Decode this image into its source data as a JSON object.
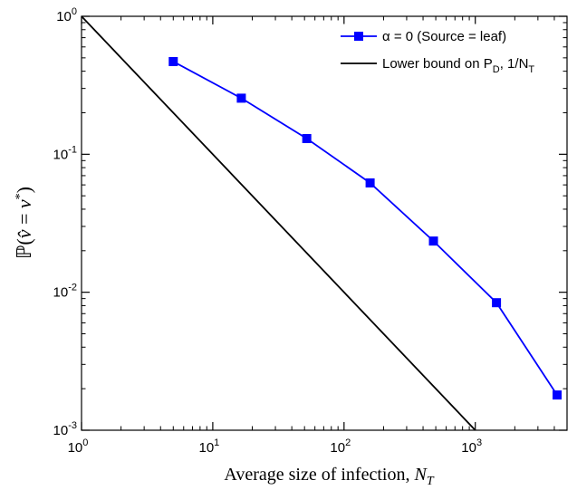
{
  "chart_data": {
    "type": "line",
    "x_scale": "log",
    "y_scale": "log",
    "xlim": [
      1,
      5000
    ],
    "ylim": [
      0.001,
      1
    ],
    "xlabel": {
      "text": "Average size of infection, ",
      "var": "N",
      "sub": "T"
    },
    "ylabel": {
      "text": "ℙ(",
      "var1": "v̂",
      "eq": " = ",
      "var2": "v",
      "sup": "*",
      "close": ")"
    },
    "grid": false,
    "legend_position": "top-right",
    "x_ticks": [
      {
        "value": 1,
        "base": "10",
        "exp": "0"
      },
      {
        "value": 10,
        "base": "10",
        "exp": "1"
      },
      {
        "value": 100,
        "base": "10",
        "exp": "2"
      },
      {
        "value": 1000,
        "base": "10",
        "exp": "3"
      }
    ],
    "y_ticks": [
      {
        "value": 0.001,
        "base": "10",
        "exp": "-3"
      },
      {
        "value": 0.01,
        "base": "10",
        "exp": "-2"
      },
      {
        "value": 0.1,
        "base": "10",
        "exp": "-1"
      },
      {
        "value": 1,
        "base": "10",
        "exp": "0"
      }
    ],
    "series": [
      {
        "label": "α = 0 (Source = leaf)",
        "legend_label": {
          "text": "α = 0 (Source = leaf)"
        },
        "color": "#0000ff",
        "marker": "square",
        "x": [
          5,
          16.5,
          52,
          158,
          480,
          1450,
          4200
        ],
        "y": [
          0.47,
          0.255,
          0.13,
          0.062,
          0.0235,
          0.0084,
          0.0018
        ]
      },
      {
        "label": "Lower bound on P_D, 1/N_T",
        "legend_label": {
          "text": "Lower bound on P",
          "sub1": "D",
          "mid": ",  1/N",
          "sub2": "T"
        },
        "color": "#000000",
        "marker": "none",
        "x": [
          1,
          1000
        ],
        "y": [
          1,
          0.001
        ]
      }
    ]
  }
}
